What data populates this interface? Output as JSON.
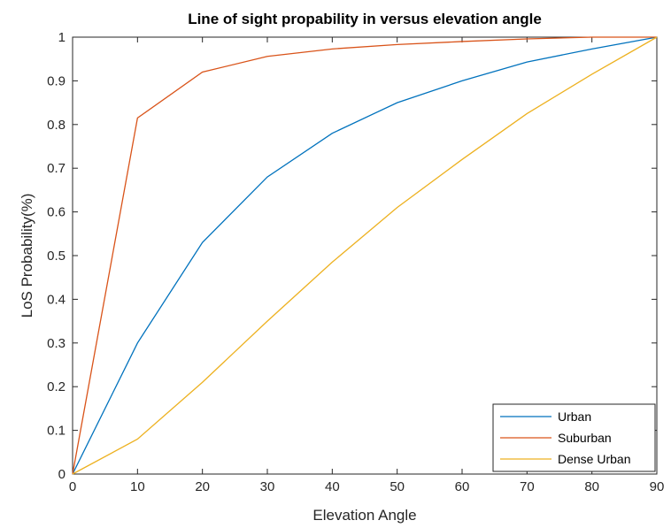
{
  "chart_data": {
    "type": "line",
    "title": "Line of sight propability in versus elevation angle",
    "xlabel": "Elevation Angle",
    "ylabel": "LoS Probability(%)",
    "xlim": [
      0,
      90
    ],
    "ylim": [
      0,
      1
    ],
    "xticks": [
      0,
      10,
      20,
      30,
      40,
      50,
      60,
      70,
      80,
      90
    ],
    "yticks": [
      0,
      0.1,
      0.2,
      0.3,
      0.4,
      0.5,
      0.6,
      0.7,
      0.8,
      0.9,
      1
    ],
    "grid": false,
    "legend_position": "bottom-right",
    "x": [
      0,
      10,
      20,
      30,
      40,
      50,
      60,
      70,
      80,
      90
    ],
    "series": [
      {
        "name": "Urban",
        "color": "#0072BD",
        "values": [
          0,
          0.3,
          0.53,
          0.68,
          0.78,
          0.85,
          0.9,
          0.943,
          0.973,
          1.0
        ]
      },
      {
        "name": "Suburban",
        "color": "#D95319",
        "values": [
          0,
          0.815,
          0.92,
          0.956,
          0.973,
          0.983,
          0.99,
          0.996,
          1.0,
          1.0
        ]
      },
      {
        "name": "Dense Urban",
        "color": "#EDB120",
        "values": [
          0,
          0.08,
          0.21,
          0.35,
          0.485,
          0.61,
          0.72,
          0.825,
          0.915,
          1.0
        ]
      }
    ]
  }
}
